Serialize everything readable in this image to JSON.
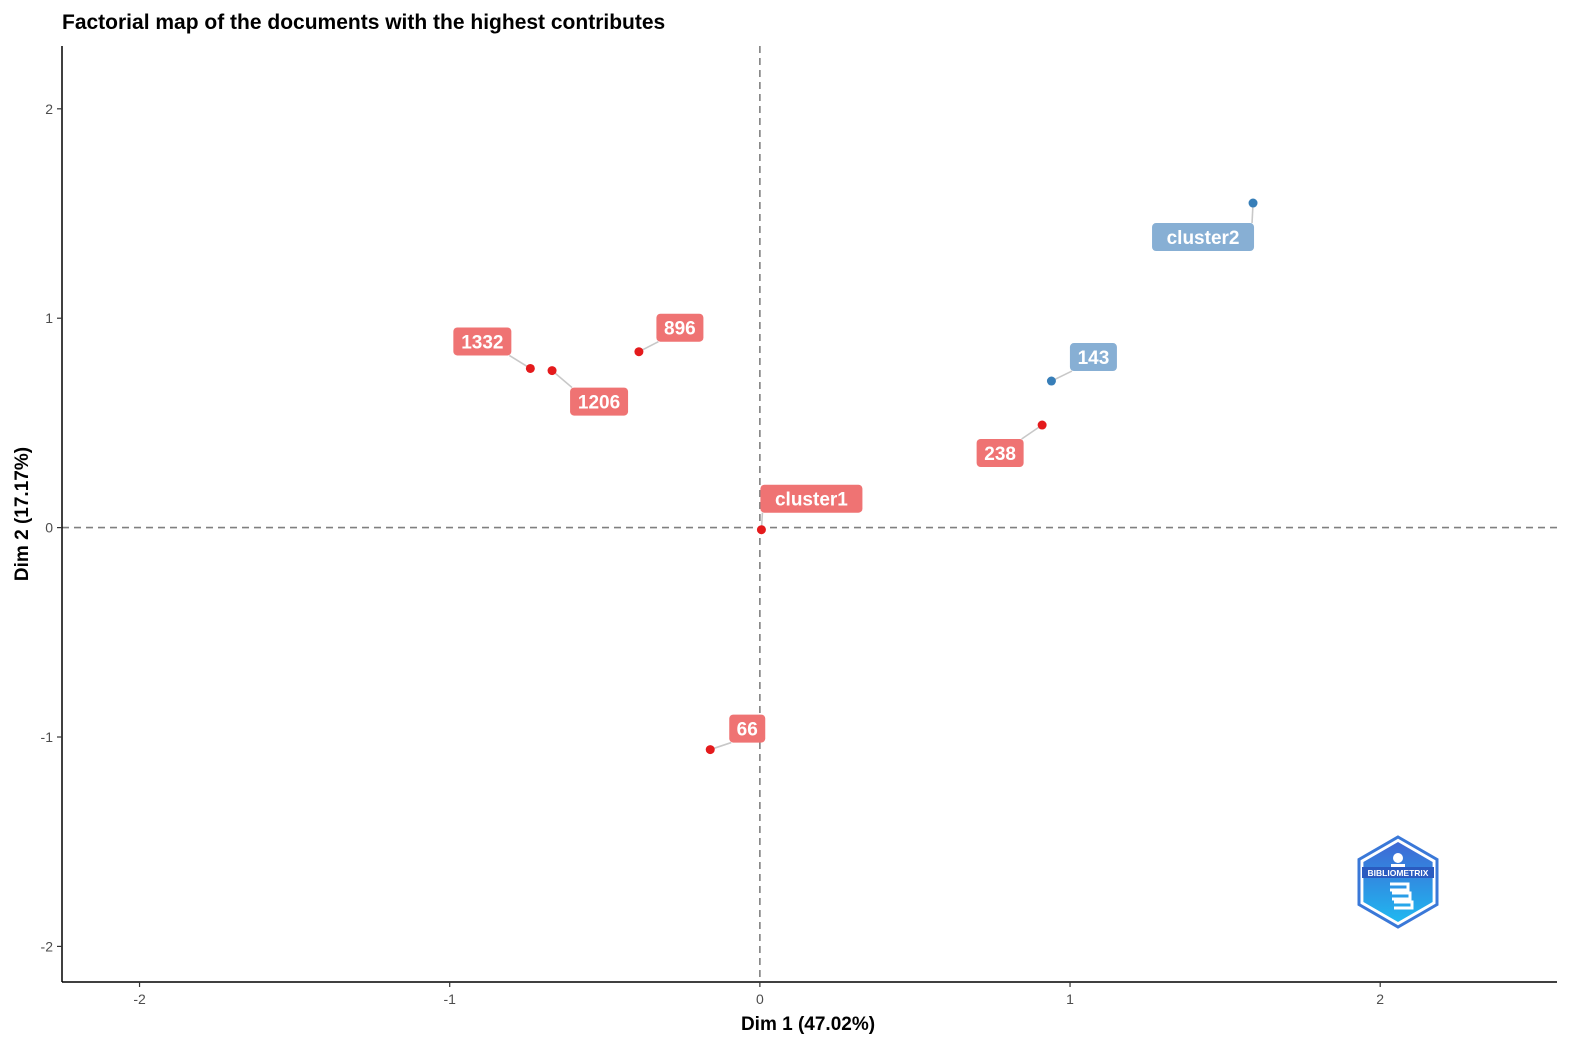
{
  "chart_data": {
    "type": "scatter",
    "title": "Factorial map of the documents with the highest contributes",
    "xlabel": "Dim 1 (47.02%)",
    "ylabel": "Dim 2 (17.17%)",
    "xlim": [
      -2.25,
      2.57
    ],
    "ylim": [
      -2.17,
      2.3
    ],
    "xticks": [
      -2,
      -1,
      0,
      1,
      2
    ],
    "yticks": [
      -2,
      -1,
      0,
      1,
      2
    ],
    "xtick_labels": [
      "-2",
      "-1",
      "0",
      "1",
      "2"
    ],
    "ytick_labels": [
      "-2",
      "-1",
      "0",
      "1",
      "2"
    ],
    "reference_lines": {
      "x": 0,
      "y": 0,
      "style": "dashed"
    },
    "grid": false,
    "points": [
      {
        "label": "cluster1",
        "x": 0.005,
        "y": -0.01,
        "group": "cluster1"
      },
      {
        "label": "66",
        "x": -0.16,
        "y": -1.06,
        "group": "cluster1"
      },
      {
        "label": "896",
        "x": -0.39,
        "y": 0.84,
        "group": "cluster1"
      },
      {
        "label": "1332",
        "x": -0.74,
        "y": 0.76,
        "group": "cluster1"
      },
      {
        "label": "1206",
        "x": -0.67,
        "y": 0.75,
        "group": "cluster1"
      },
      {
        "label": "238",
        "x": 0.91,
        "y": 0.49,
        "group": "cluster1"
      },
      {
        "label": "143",
        "x": 0.94,
        "y": 0.7,
        "group": "cluster2"
      },
      {
        "label": "cluster2",
        "x": 1.59,
        "y": 1.55,
        "group": "cluster2"
      }
    ],
    "colors": {
      "cluster1": {
        "point": "#e41a1c",
        "label": "#ef7373"
      },
      "cluster2": {
        "point": "#377eb8",
        "label": "#87afd4"
      }
    }
  },
  "logo": {
    "text": "BIBLIOMETRIX",
    "icon": "bibliometrix-logo"
  }
}
